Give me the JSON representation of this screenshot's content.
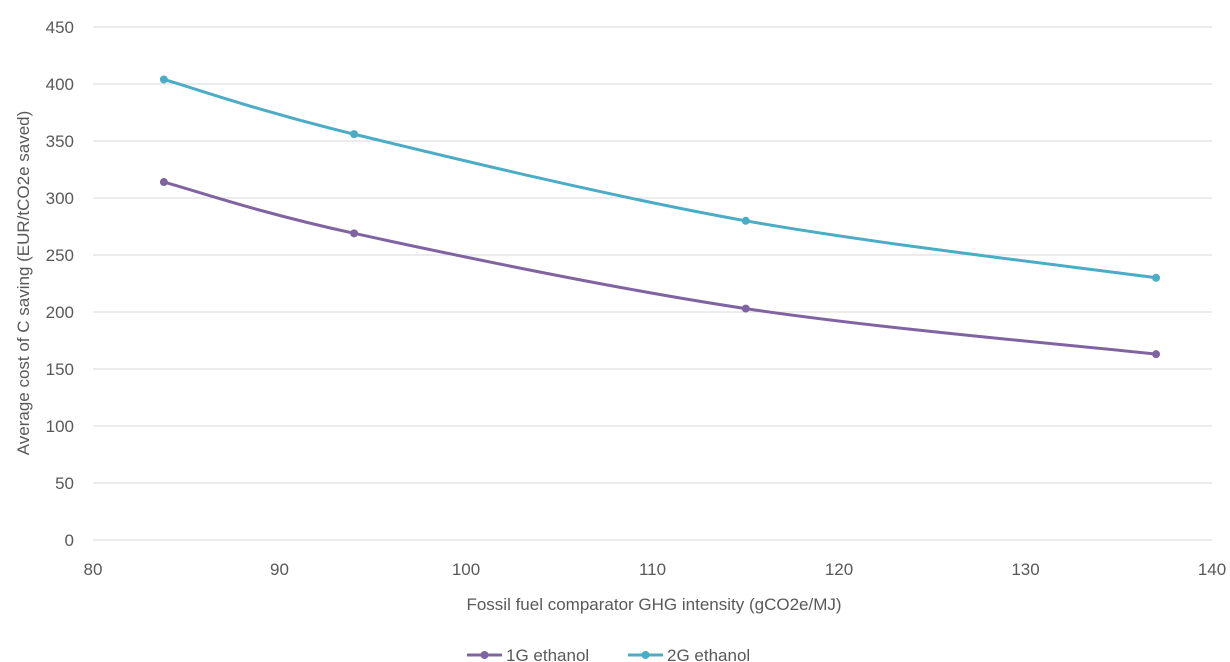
{
  "chart_data": {
    "type": "line",
    "title": "",
    "xlabel": "Fossil fuel comparator GHG intensity (gCO2e/MJ)",
    "ylabel": "Average cost of C saving (EUR/tCO2e saved)",
    "xlim": [
      80,
      140
    ],
    "ylim": [
      0,
      450
    ],
    "xticks": [
      80,
      90,
      100,
      110,
      120,
      130,
      140
    ],
    "yticks": [
      0,
      50,
      100,
      150,
      200,
      250,
      300,
      350,
      400,
      450
    ],
    "grid": "horizontal",
    "legend_position": "bottom",
    "smooth": true,
    "series": [
      {
        "name": "1G ethanol",
        "color": "#8064a2",
        "x": [
          83.8,
          94,
          115,
          137
        ],
        "y": [
          314,
          269,
          203,
          163
        ]
      },
      {
        "name": "2G ethanol",
        "color": "#4bacc6",
        "x": [
          83.8,
          94,
          115,
          137
        ],
        "y": [
          404,
          356,
          280,
          230
        ]
      }
    ]
  }
}
